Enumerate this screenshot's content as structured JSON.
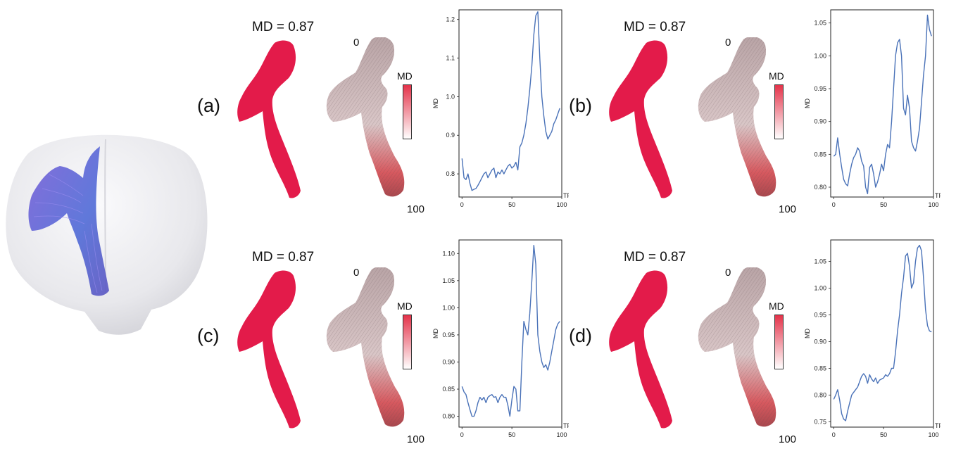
{
  "figure": {
    "panels": [
      {
        "label": "(a)",
        "md_title": "MD = 0.87",
        "tract_start_label": "0",
        "tract_end_label": "100",
        "legend_title": "MD"
      },
      {
        "label": "(b)",
        "md_title": "MD = 0.87",
        "tract_start_label": "0",
        "tract_end_label": "100",
        "legend_title": "MD"
      },
      {
        "label": "(c)",
        "md_title": "MD = 0.87",
        "tract_start_label": "0",
        "tract_end_label": "100",
        "legend_title": "MD"
      },
      {
        "label": "(d)",
        "md_title": "MD = 0.87",
        "tract_start_label": "0",
        "tract_end_label": "100",
        "legend_title": "MD"
      }
    ]
  },
  "colors": {
    "tract_solid": "#e31b4a",
    "line": "#4a72b8",
    "brain": "#ededf0",
    "fiber": "#6b63d9"
  },
  "chart_data": [
    {
      "type": "line",
      "xlabel": "TP",
      "ylabel": "MD",
      "xlim": [
        -3,
        100
      ],
      "ylim": [
        0.74,
        1.225
      ],
      "xticks": [
        0,
        50,
        100
      ],
      "yticks": [
        0.8,
        0.9,
        1.0,
        1.1,
        1.2
      ],
      "ytick_labels": [
        "0.8",
        "0.9",
        "1.0",
        "1.1",
        "1.2"
      ],
      "series": [
        {
          "x": [
            0,
            2,
            4,
            6,
            8,
            10,
            12,
            14,
            16,
            18,
            20,
            22,
            24,
            26,
            28,
            30,
            32,
            34,
            36,
            38,
            40,
            42,
            44,
            46,
            48,
            50,
            52,
            54,
            56,
            58,
            60,
            62,
            64,
            66,
            68,
            70,
            72,
            74,
            76,
            78,
            80,
            82,
            84,
            86,
            88,
            90,
            92,
            94,
            96,
            98
          ],
          "y": [
            0.84,
            0.79,
            0.785,
            0.8,
            0.775,
            0.757,
            0.76,
            0.762,
            0.77,
            0.78,
            0.79,
            0.8,
            0.805,
            0.79,
            0.8,
            0.81,
            0.815,
            0.79,
            0.805,
            0.8,
            0.81,
            0.8,
            0.81,
            0.82,
            0.825,
            0.815,
            0.82,
            0.83,
            0.81,
            0.87,
            0.88,
            0.9,
            0.93,
            0.97,
            1.02,
            1.08,
            1.16,
            1.21,
            1.22,
            1.1,
            1.0,
            0.95,
            0.91,
            0.89,
            0.9,
            0.91,
            0.93,
            0.94,
            0.955,
            0.97
          ]
        }
      ]
    },
    {
      "type": "line",
      "xlabel": "TP",
      "ylabel": "MD",
      "xlim": [
        -3,
        100
      ],
      "ylim": [
        0.785,
        1.07
      ],
      "xticks": [
        0,
        50,
        100
      ],
      "yticks": [
        0.8,
        0.85,
        0.9,
        0.95,
        1.0,
        1.05
      ],
      "ytick_labels": [
        "0.80",
        "0.85",
        "0.90",
        "0.95",
        "1.00",
        "1.05"
      ],
      "series": [
        {
          "x": [
            0,
            2,
            4,
            6,
            8,
            10,
            12,
            14,
            16,
            18,
            20,
            22,
            24,
            26,
            28,
            30,
            32,
            34,
            36,
            38,
            40,
            42,
            44,
            46,
            48,
            50,
            52,
            54,
            56,
            58,
            60,
            62,
            64,
            66,
            68,
            70,
            72,
            74,
            76,
            78,
            80,
            82,
            84,
            86,
            88,
            90,
            92,
            94,
            96,
            98
          ],
          "y": [
            0.847,
            0.85,
            0.875,
            0.85,
            0.83,
            0.812,
            0.805,
            0.802,
            0.82,
            0.835,
            0.845,
            0.85,
            0.86,
            0.855,
            0.84,
            0.832,
            0.8,
            0.79,
            0.83,
            0.835,
            0.82,
            0.8,
            0.808,
            0.82,
            0.835,
            0.825,
            0.85,
            0.865,
            0.86,
            0.9,
            0.95,
            1.0,
            1.02,
            1.025,
            1.0,
            0.92,
            0.91,
            0.94,
            0.92,
            0.87,
            0.86,
            0.855,
            0.87,
            0.89,
            0.93,
            0.97,
            1.0,
            1.062,
            1.04,
            1.03
          ]
        }
      ]
    },
    {
      "type": "line",
      "xlabel": "TP",
      "ylabel": "MD",
      "xlim": [
        -3,
        100
      ],
      "ylim": [
        0.78,
        1.125
      ],
      "xticks": [
        0,
        50,
        100
      ],
      "yticks": [
        0.8,
        0.85,
        0.9,
        0.95,
        1.0,
        1.05,
        1.1
      ],
      "ytick_labels": [
        "0.80",
        "0.85",
        "0.90",
        "0.95",
        "1.00",
        "1.05",
        "1.10"
      ],
      "series": [
        {
          "x": [
            0,
            2,
            4,
            6,
            8,
            10,
            12,
            14,
            16,
            18,
            20,
            22,
            24,
            26,
            28,
            30,
            32,
            34,
            36,
            38,
            40,
            42,
            44,
            46,
            48,
            50,
            52,
            54,
            56,
            58,
            60,
            62,
            64,
            66,
            68,
            70,
            72,
            74,
            76,
            78,
            80,
            82,
            84,
            86,
            88,
            90,
            92,
            94,
            96,
            98
          ],
          "y": [
            0.855,
            0.845,
            0.84,
            0.825,
            0.812,
            0.8,
            0.8,
            0.81,
            0.825,
            0.835,
            0.83,
            0.835,
            0.825,
            0.835,
            0.838,
            0.84,
            0.835,
            0.836,
            0.825,
            0.835,
            0.84,
            0.835,
            0.835,
            0.82,
            0.8,
            0.83,
            0.855,
            0.85,
            0.81,
            0.81,
            0.9,
            0.975,
            0.96,
            0.95,
            0.99,
            1.05,
            1.115,
            1.08,
            0.95,
            0.92,
            0.9,
            0.89,
            0.895,
            0.885,
            0.9,
            0.92,
            0.94,
            0.96,
            0.97,
            0.975
          ]
        }
      ]
    },
    {
      "type": "line",
      "xlabel": "TP",
      "ylabel": "MD",
      "xlim": [
        -3,
        100
      ],
      "ylim": [
        0.74,
        1.09
      ],
      "xticks": [
        0,
        50,
        100
      ],
      "yticks": [
        0.75,
        0.8,
        0.85,
        0.9,
        0.95,
        1.0,
        1.05
      ],
      "ytick_labels": [
        "0.75",
        "0.80",
        "0.85",
        "0.90",
        "0.95",
        "1.00",
        "1.05"
      ],
      "series": [
        {
          "x": [
            0,
            2,
            4,
            6,
            8,
            10,
            12,
            14,
            16,
            18,
            20,
            22,
            24,
            26,
            28,
            30,
            32,
            34,
            36,
            38,
            40,
            42,
            44,
            46,
            48,
            50,
            52,
            54,
            56,
            58,
            60,
            62,
            64,
            66,
            68,
            70,
            72,
            74,
            76,
            78,
            80,
            82,
            84,
            86,
            88,
            90,
            92,
            94,
            96,
            98
          ],
          "y": [
            0.792,
            0.8,
            0.81,
            0.79,
            0.765,
            0.755,
            0.752,
            0.77,
            0.785,
            0.8,
            0.805,
            0.81,
            0.815,
            0.825,
            0.835,
            0.84,
            0.835,
            0.822,
            0.838,
            0.83,
            0.825,
            0.832,
            0.822,
            0.828,
            0.83,
            0.832,
            0.838,
            0.835,
            0.84,
            0.85,
            0.85,
            0.88,
            0.92,
            0.95,
            0.99,
            1.02,
            1.06,
            1.065,
            1.04,
            1.0,
            1.01,
            1.05,
            1.075,
            1.08,
            1.07,
            1.02,
            0.96,
            0.93,
            0.92,
            0.918
          ]
        }
      ]
    }
  ]
}
